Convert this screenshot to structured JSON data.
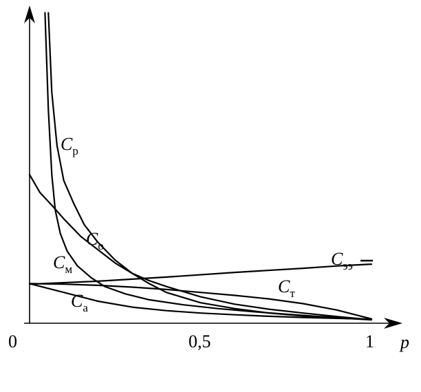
{
  "chart_data": {
    "type": "line",
    "title": "",
    "xlabel": "p",
    "ylabel": "",
    "xlim": [
      0,
      1
    ],
    "ylim": [
      0,
      1
    ],
    "grid": false,
    "legend": "none",
    "x_ticks": [
      "0",
      "0,5",
      "1"
    ],
    "series": [
      {
        "name": "р",
        "prefix": "C",
        "points": [
          [
            0.055,
            1.05
          ],
          [
            0.065,
            0.78
          ],
          [
            0.08,
            0.6
          ],
          [
            0.1,
            0.48
          ],
          [
            0.13,
            0.4
          ],
          [
            0.16,
            0.33
          ],
          [
            0.2,
            0.27
          ],
          [
            0.25,
            0.21
          ],
          [
            0.3,
            0.165
          ],
          [
            0.35,
            0.13
          ],
          [
            0.4,
            0.1
          ],
          [
            0.5,
            0.065
          ],
          [
            0.6,
            0.045
          ],
          [
            0.7,
            0.03
          ],
          [
            0.8,
            0.02
          ],
          [
            0.9,
            0.013
          ],
          [
            1.0,
            0.007
          ]
        ]
      },
      {
        "name": "о",
        "prefix": "C",
        "points": [
          [
            0.0,
            0.5
          ],
          [
            0.03,
            0.44
          ],
          [
            0.07,
            0.39
          ],
          [
            0.1,
            0.35
          ],
          [
            0.15,
            0.29
          ],
          [
            0.2,
            0.245
          ],
          [
            0.25,
            0.2
          ],
          [
            0.3,
            0.165
          ],
          [
            0.35,
            0.14
          ],
          [
            0.4,
            0.12
          ],
          [
            0.5,
            0.085
          ],
          [
            0.6,
            0.06
          ],
          [
            0.7,
            0.043
          ],
          [
            0.8,
            0.03
          ],
          [
            0.9,
            0.018
          ],
          [
            1.0,
            0.007
          ]
        ]
      },
      {
        "name": "м",
        "prefix": "C",
        "points": [
          [
            0.045,
            1.05
          ],
          [
            0.055,
            0.72
          ],
          [
            0.065,
            0.5
          ],
          [
            0.075,
            0.38
          ],
          [
            0.09,
            0.3
          ],
          [
            0.11,
            0.24
          ],
          [
            0.14,
            0.19
          ],
          [
            0.18,
            0.15
          ],
          [
            0.22,
            0.12
          ],
          [
            0.28,
            0.095
          ],
          [
            0.35,
            0.075
          ],
          [
            0.45,
            0.058
          ],
          [
            0.55,
            0.045
          ],
          [
            0.65,
            0.035
          ],
          [
            0.75,
            0.026
          ],
          [
            0.85,
            0.018
          ],
          [
            1.0,
            0.008
          ]
        ]
      },
      {
        "name": "т",
        "prefix": "C",
        "points": [
          [
            0.0,
            0.13
          ],
          [
            0.1,
            0.128
          ],
          [
            0.2,
            0.124
          ],
          [
            0.3,
            0.118
          ],
          [
            0.4,
            0.11
          ],
          [
            0.5,
            0.1
          ],
          [
            0.6,
            0.09
          ],
          [
            0.7,
            0.078
          ],
          [
            0.8,
            0.062
          ],
          [
            0.9,
            0.04
          ],
          [
            1.0,
            0.01
          ]
        ]
      },
      {
        "name": "а",
        "prefix": "C",
        "points": [
          [
            0.0,
            0.13
          ],
          [
            0.05,
            0.115
          ],
          [
            0.1,
            0.1
          ],
          [
            0.15,
            0.085
          ],
          [
            0.2,
            0.07
          ],
          [
            0.3,
            0.05
          ],
          [
            0.4,
            0.038
          ],
          [
            0.5,
            0.03
          ],
          [
            0.6,
            0.024
          ],
          [
            0.7,
            0.019
          ],
          [
            0.8,
            0.015
          ],
          [
            0.9,
            0.012
          ],
          [
            1.0,
            0.009
          ]
        ]
      },
      {
        "name": "ээ",
        "prefix": "C",
        "points": [
          [
            0.0,
            0.128
          ],
          [
            0.2,
            0.138
          ],
          [
            0.4,
            0.152
          ],
          [
            0.6,
            0.168
          ],
          [
            0.8,
            0.182
          ],
          [
            0.9,
            0.19
          ],
          [
            1.0,
            0.196
          ]
        ]
      }
    ]
  },
  "labels": {
    "Cp": {
      "prefix": "C",
      "sub": "р"
    },
    "Co": {
      "prefix": "C",
      "sub": "о"
    },
    "Cm": {
      "prefix": "C",
      "sub": "м"
    },
    "Ct": {
      "prefix": "C",
      "sub": "т"
    },
    "Ca": {
      "prefix": "C",
      "sub": "а"
    },
    "Cee": {
      "prefix": "C",
      "sub": "ээ"
    }
  }
}
